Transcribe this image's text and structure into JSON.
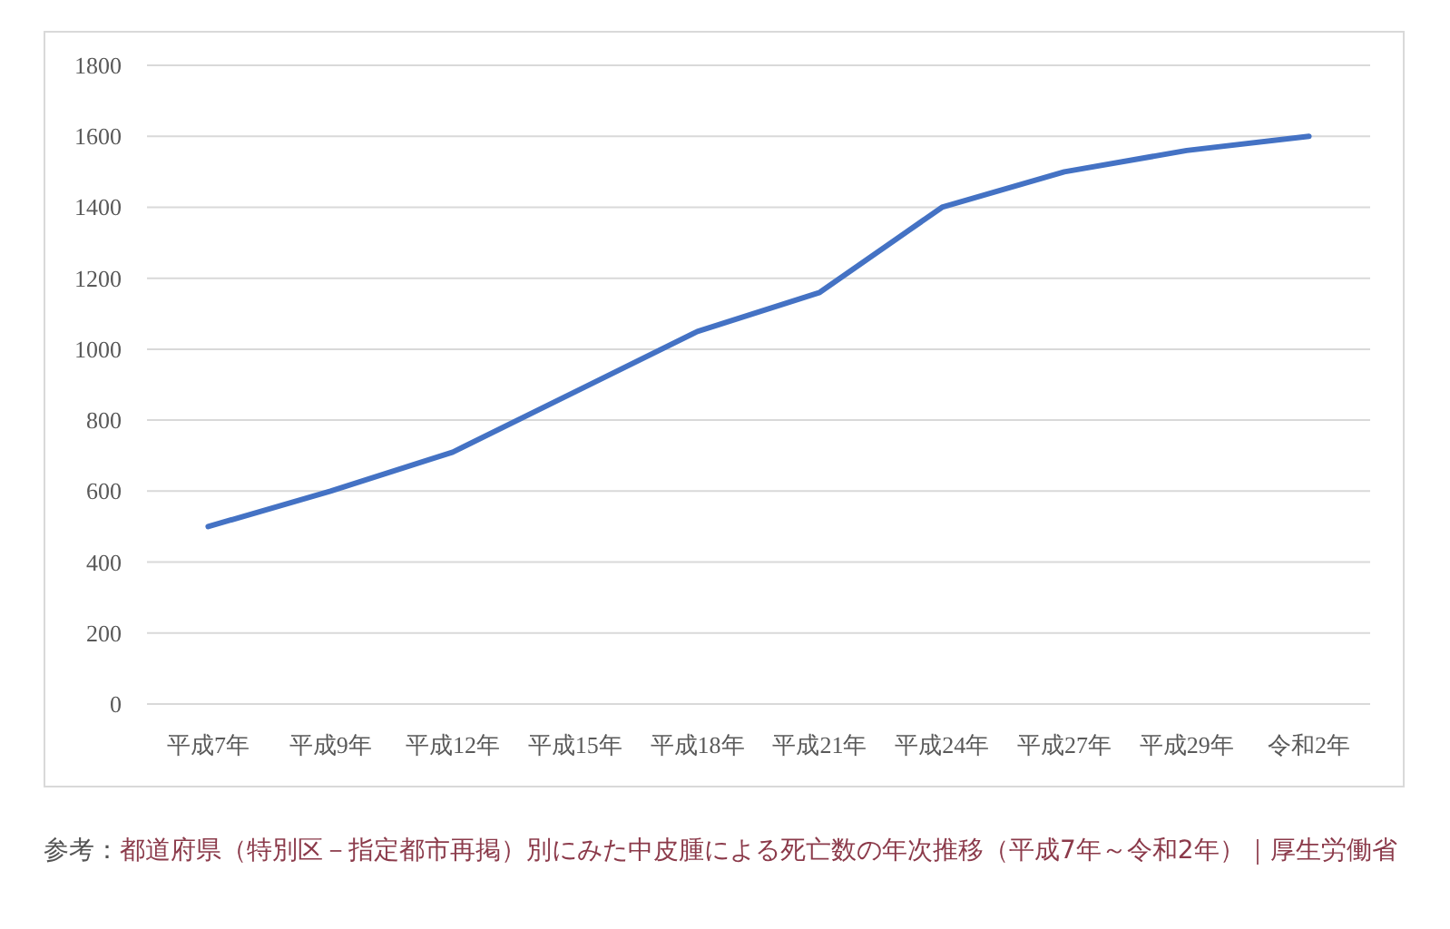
{
  "chart_data": {
    "type": "line",
    "categories": [
      "平成7年",
      "平成9年",
      "平成12年",
      "平成15年",
      "平成18年",
      "平成21年",
      "平成24年",
      "平成27年",
      "平成29年",
      "令和2年"
    ],
    "series": [
      {
        "color": "#4472c4",
        "values": [
          500,
          600,
          710,
          880,
          1050,
          1160,
          1400,
          1500,
          1560,
          1600
        ]
      }
    ],
    "ylim": [
      0,
      1800
    ],
    "yticks": [
      0,
      200,
      400,
      600,
      800,
      1000,
      1200,
      1400,
      1600,
      1800
    ],
    "grid": "y",
    "line_style": "solid",
    "annotations": [
      "参考：",
      "都道府県（特別区－指定都市再掲）別にみた中皮腫による死亡数の年次推移（平成7年～令和2年）｜厚生労働省"
    ]
  }
}
